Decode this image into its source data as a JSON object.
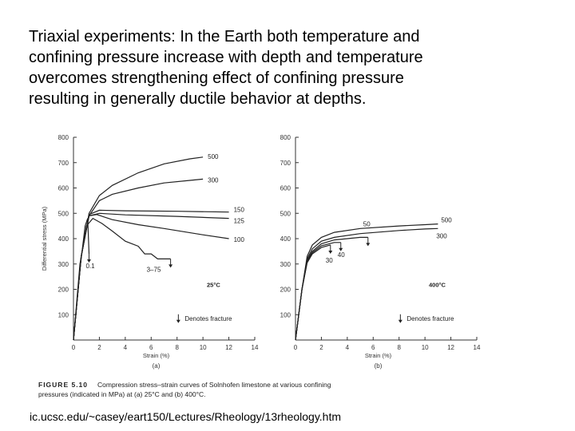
{
  "slide": {
    "lines": [
      "Triaxial experiments: In the Earth both temperature and",
      "confining pressure increase with depth and temperature",
      "overcomes strengthening effect of confining pressure",
      "resulting in generally ductile behavior at depths."
    ],
    "source": "ic.ucsc.edu/~casey/eart150/Lectures/Rheology/13rheology.htm"
  },
  "caption": {
    "figure_label": "FIGURE 5.10",
    "line1": "Compression stress–strain curves of Solnhofen limestone at various confining",
    "line2": "pressures (indicated in MPa) at (a) 25°C and (b) 400°C."
  },
  "chart_data": [
    {
      "type": "line",
      "panel_label": "(a)",
      "temperature_label": "25°C",
      "fracture_legend": "Denotes fracture",
      "xlabel": "Strain (%)",
      "ylabel": "Differential stress (MPa)",
      "xlim": [
        0,
        14
      ],
      "ylim": [
        0,
        800
      ],
      "xticks": [
        "0",
        "2",
        "4",
        "6",
        "8",
        "10",
        "12",
        "14"
      ],
      "yticks": [
        "100",
        "200",
        "300",
        "400",
        "500",
        "600",
        "700",
        "800"
      ],
      "grid": false,
      "series": [
        {
          "name": "500",
          "x": [
            0,
            0.6,
            1.2,
            2,
            3,
            5,
            7,
            9,
            10
          ],
          "y": [
            0,
            330,
            500,
            570,
            610,
            660,
            695,
            715,
            722
          ],
          "fracture": false
        },
        {
          "name": "300",
          "x": [
            0,
            0.6,
            1.2,
            2,
            3,
            5,
            7,
            9,
            10
          ],
          "y": [
            0,
            330,
            490,
            550,
            575,
            600,
            620,
            630,
            635
          ],
          "fracture": false
        },
        {
          "name": "150",
          "x": [
            0,
            0.6,
            1.2,
            2,
            4,
            8,
            12
          ],
          "y": [
            0,
            330,
            495,
            512,
            510,
            508,
            505
          ],
          "fracture": false
        },
        {
          "name": "125",
          "x": [
            0,
            0.6,
            1.2,
            2,
            4,
            8,
            12
          ],
          "y": [
            0,
            330,
            490,
            500,
            494,
            488,
            480
          ],
          "fracture": false
        },
        {
          "name": "100",
          "x": [
            0,
            0.6,
            1.2,
            1.8,
            3,
            5,
            7,
            10,
            12
          ],
          "y": [
            0,
            330,
            490,
            495,
            475,
            455,
            440,
            415,
            400
          ],
          "fracture": false
        },
        {
          "name": "3–75",
          "x": [
            0,
            0.5,
            1,
            1.5,
            2.2,
            3,
            4,
            5,
            5.5,
            6,
            6.5,
            7.5
          ],
          "y": [
            0,
            300,
            450,
            480,
            460,
            430,
            390,
            370,
            340,
            340,
            320,
            320
          ],
          "fracture": true
        },
        {
          "name": "0.1",
          "x": [
            0,
            0.5,
            0.9,
            1.1,
            1.2
          ],
          "y": [
            0,
            280,
            450,
            480,
            340
          ],
          "fracture": true
        }
      ]
    },
    {
      "type": "line",
      "panel_label": "(b)",
      "temperature_label": "400°C",
      "fracture_legend": "Denotes fracture",
      "xlabel": "Strain (%)",
      "ylabel": "",
      "xlim": [
        0,
        14
      ],
      "ylim": [
        0,
        800
      ],
      "xticks": [
        "0",
        "2",
        "4",
        "6",
        "8",
        "10",
        "12",
        "14"
      ],
      "yticks": [
        "100",
        "200",
        "300",
        "400",
        "500",
        "600",
        "700",
        "800"
      ],
      "grid": false,
      "series": [
        {
          "name": "500",
          "x": [
            0,
            0.5,
            0.9,
            1.3,
            2,
            3,
            5,
            8,
            10,
            11
          ],
          "y": [
            0,
            200,
            330,
            375,
            405,
            425,
            440,
            450,
            455,
            458
          ],
          "fracture": false
        },
        {
          "name": "300",
          "x": [
            0,
            0.5,
            0.9,
            1.3,
            2,
            3,
            5,
            8,
            10,
            11
          ],
          "y": [
            0,
            200,
            320,
            360,
            390,
            405,
            420,
            432,
            438,
            440
          ],
          "fracture": false
        },
        {
          "name": "50",
          "x": [
            0,
            0.5,
            0.9,
            1.3,
            2,
            3,
            4,
            5,
            5.6
          ],
          "y": [
            0,
            200,
            315,
            350,
            380,
            395,
            400,
            405,
            405
          ],
          "fracture": true
        },
        {
          "name": "40",
          "x": [
            0,
            0.5,
            0.9,
            1.3,
            2,
            3,
            3.5
          ],
          "y": [
            0,
            200,
            310,
            345,
            372,
            385,
            385
          ],
          "fracture": true
        },
        {
          "name": "30",
          "x": [
            0,
            0.5,
            0.9,
            1.3,
            2,
            2.7
          ],
          "y": [
            0,
            200,
            305,
            340,
            365,
            375
          ],
          "fracture": true
        }
      ]
    }
  ]
}
